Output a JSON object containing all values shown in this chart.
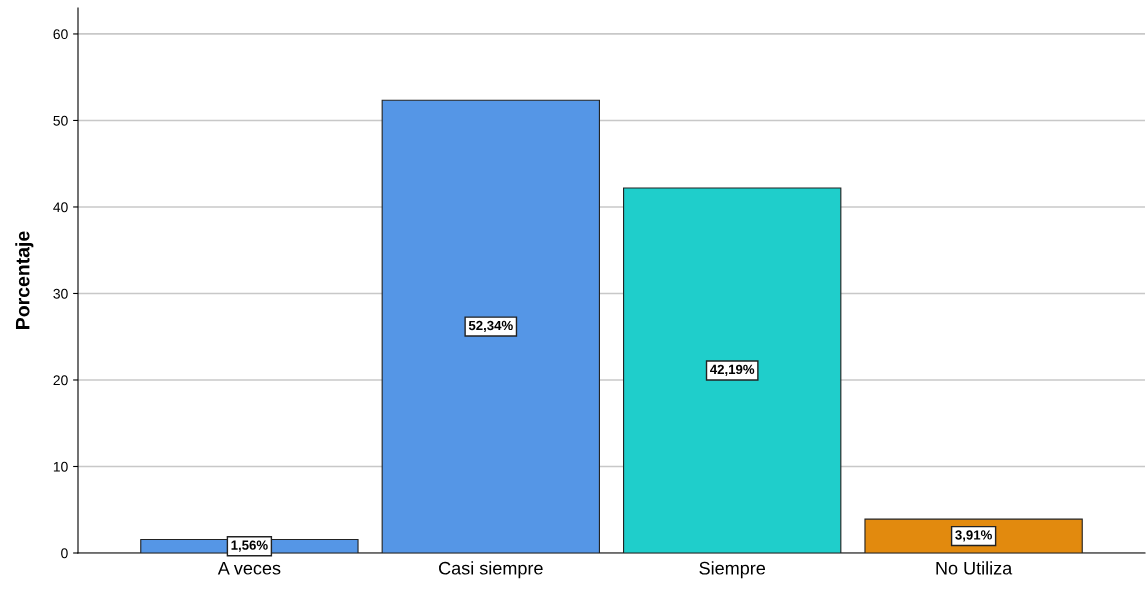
{
  "chart_data": {
    "type": "bar",
    "ylabel": "Porcentaje",
    "categories": [
      "A veces",
      "Casi siempre",
      "Siempre",
      "No Utiliza"
    ],
    "values": [
      1.56,
      52.34,
      42.19,
      3.91
    ],
    "colors": [
      "#5596e6",
      "#5596e6",
      "#1fcecb",
      "#e28a0e"
    ],
    "value_labels": [
      "1,56%",
      "52,34%",
      "42,19%",
      "3,91%"
    ],
    "ylim": [
      0,
      63
    ],
    "yticks": [
      0,
      10,
      20,
      30,
      40,
      50,
      60
    ],
    "grid": "y",
    "legend": false
  }
}
